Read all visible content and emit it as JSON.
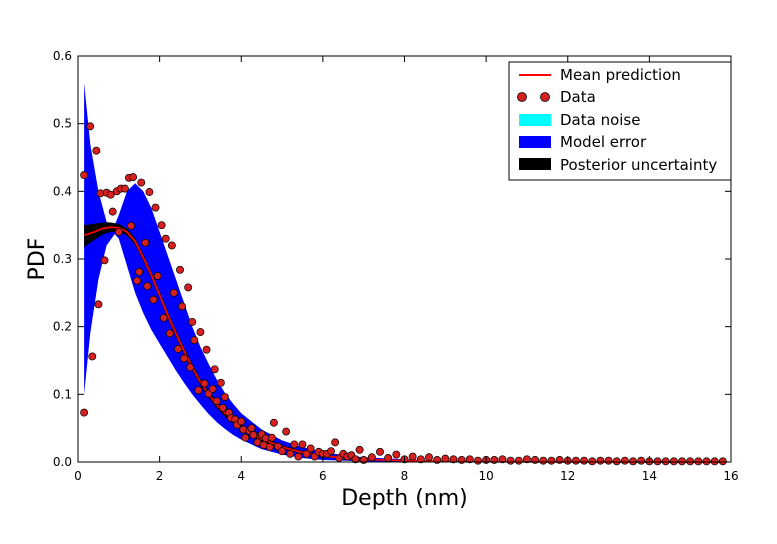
{
  "chart_data": {
    "type": "scatter",
    "xlabel": "Depth (nm)",
    "ylabel": "PDF",
    "xlim": [
      0,
      16
    ],
    "ylim": [
      0,
      0.6
    ],
    "x_ticks": [
      0,
      2,
      4,
      6,
      8,
      10,
      12,
      14,
      16
    ],
    "y_ticks": [
      0.0,
      0.1,
      0.2,
      0.3,
      0.4,
      0.5,
      0.6
    ],
    "x_tick_labels": [
      "0",
      "2",
      "4",
      "6",
      "8",
      "10",
      "12",
      "14",
      "16"
    ],
    "y_tick_labels": [
      "0.0",
      "0.1",
      "0.2",
      "0.3",
      "0.4",
      "0.5",
      "0.6"
    ],
    "grid": false,
    "legend_position": "top-right",
    "legend": [
      {
        "label": "Mean prediction",
        "kind": "line",
        "color": "#ff0000"
      },
      {
        "label": "Data",
        "kind": "markers",
        "color": "#cc1111"
      },
      {
        "label": "Data noise",
        "kind": "patch",
        "color": "#00ffff"
      },
      {
        "label": "Model error",
        "kind": "patch",
        "color": "#0000ff"
      },
      {
        "label": "Posterior uncertainty",
        "kind": "patch",
        "color": "#000000"
      }
    ],
    "colors": {
      "mean": "#ff0000",
      "data_fill": "#d62020",
      "data_edge": "#000000",
      "noise": "#00ffff",
      "model_error": "#0000ff",
      "posterior": "#000000"
    },
    "mean_prediction": {
      "x": [
        0.15,
        0.4,
        0.6,
        0.8,
        1.0,
        1.2,
        1.4,
        1.6,
        1.8,
        2.0,
        2.2,
        2.4,
        2.6,
        2.8,
        3.0,
        3.2,
        3.4,
        3.6,
        3.8,
        4.0,
        4.5,
        5.0,
        5.5,
        6.0,
        6.5,
        7.0,
        8.0,
        9.0,
        10.0,
        12.0,
        14.0,
        15.8
      ],
      "y": [
        0.335,
        0.34,
        0.345,
        0.347,
        0.346,
        0.34,
        0.326,
        0.302,
        0.276,
        0.247,
        0.217,
        0.19,
        0.164,
        0.14,
        0.118,
        0.1,
        0.085,
        0.072,
        0.061,
        0.051,
        0.034,
        0.022,
        0.014,
        0.009,
        0.006,
        0.004,
        0.002,
        0.001,
        0.0005,
        0.0002,
        0.0001,
        0.0001
      ]
    },
    "model_error_band": {
      "x": [
        0.15,
        0.3,
        0.5,
        0.7,
        0.9,
        1.0,
        1.2,
        1.4,
        1.6,
        1.8,
        2.0,
        2.2,
        2.4,
        2.6,
        2.8,
        3.0,
        3.2,
        3.4,
        3.6,
        3.8,
        4.0,
        4.5,
        5.0,
        5.5,
        6.0,
        6.5,
        7.0,
        8.0,
        9.0,
        10.0,
        12.0,
        14.0,
        15.8
      ],
      "upper": [
        0.56,
        0.47,
        0.4,
        0.355,
        0.35,
        0.365,
        0.4,
        0.412,
        0.4,
        0.375,
        0.34,
        0.305,
        0.27,
        0.235,
        0.2,
        0.17,
        0.145,
        0.122,
        0.102,
        0.086,
        0.072,
        0.048,
        0.032,
        0.022,
        0.015,
        0.01,
        0.007,
        0.004,
        0.002,
        0.001,
        0.0005,
        0.0003,
        0.0002
      ],
      "lower": [
        0.1,
        0.19,
        0.27,
        0.32,
        0.337,
        0.33,
        0.29,
        0.25,
        0.22,
        0.195,
        0.175,
        0.155,
        0.135,
        0.117,
        0.1,
        0.085,
        0.071,
        0.059,
        0.049,
        0.04,
        0.033,
        0.019,
        0.011,
        0.006,
        0.003,
        0.002,
        0.001,
        0.0005,
        0.0002,
        0.0001,
        0.0,
        0.0,
        0.0
      ]
    },
    "posterior_band": {
      "x": [
        0.15,
        0.4,
        0.6,
        0.8,
        1.0,
        1.2,
        1.4,
        1.6,
        1.8,
        2.0,
        2.2,
        2.4,
        2.6,
        2.8,
        3.0,
        3.2,
        3.4,
        3.6,
        3.8,
        4.0,
        4.5,
        5.0,
        5.5,
        6.0,
        6.5,
        7.0,
        8.0,
        9.0,
        10.0,
        12.0,
        14.0,
        15.8
      ],
      "upper": [
        0.35,
        0.352,
        0.354,
        0.354,
        0.352,
        0.345,
        0.331,
        0.307,
        0.281,
        0.252,
        0.222,
        0.195,
        0.169,
        0.145,
        0.123,
        0.105,
        0.09,
        0.077,
        0.065,
        0.055,
        0.038,
        0.025,
        0.016,
        0.011,
        0.007,
        0.005,
        0.0025,
        0.0012,
        0.0006,
        0.0003,
        0.0002,
        0.0002
      ],
      "lower": [
        0.318,
        0.328,
        0.336,
        0.34,
        0.34,
        0.335,
        0.321,
        0.297,
        0.271,
        0.242,
        0.212,
        0.185,
        0.159,
        0.135,
        0.113,
        0.095,
        0.08,
        0.067,
        0.057,
        0.047,
        0.03,
        0.019,
        0.012,
        0.007,
        0.005,
        0.003,
        0.0015,
        0.0008,
        0.0004,
        0.0001,
        0.0,
        0.0
      ]
    },
    "data_points": {
      "x": [
        0.15,
        0.15,
        0.3,
        0.35,
        0.45,
        0.5,
        0.55,
        0.65,
        0.7,
        0.8,
        0.85,
        0.95,
        1.0,
        1.05,
        1.15,
        1.25,
        1.3,
        1.35,
        1.45,
        1.5,
        1.55,
        1.65,
        1.7,
        1.75,
        1.85,
        1.9,
        1.95,
        2.05,
        2.1,
        2.15,
        2.25,
        2.3,
        2.35,
        2.45,
        2.5,
        2.55,
        2.6,
        2.7,
        2.75,
        2.8,
        2.85,
        2.95,
        3.0,
        3.1,
        3.15,
        3.2,
        3.3,
        3.35,
        3.4,
        3.5,
        3.55,
        3.6,
        3.7,
        3.75,
        3.85,
        3.9,
        4.0,
        4.05,
        4.1,
        4.2,
        4.25,
        4.3,
        4.4,
        4.5,
        4.55,
        4.6,
        4.7,
        4.75,
        4.8,
        4.9,
        5.0,
        5.1,
        5.2,
        5.3,
        5.4,
        5.5,
        5.6,
        5.7,
        5.8,
        5.9,
        6.0,
        6.1,
        6.2,
        6.3,
        6.4,
        6.5,
        6.6,
        6.7,
        6.8,
        6.9,
        7.0,
        7.2,
        7.4,
        7.6,
        7.8,
        8.0,
        8.2,
        8.4,
        8.6,
        8.8,
        9.0,
        9.2,
        9.4,
        9.6,
        9.8,
        10.0,
        10.2,
        10.4,
        10.6,
        10.8,
        11.0,
        11.2,
        11.4,
        11.6,
        11.8,
        12.0,
        12.2,
        12.4,
        12.6,
        12.8,
        13.0,
        13.2,
        13.4,
        13.6,
        13.8,
        14.0,
        14.2,
        14.4,
        14.6,
        14.8,
        15.0,
        15.2,
        15.4,
        15.6,
        15.8
      ],
      "y": [
        0.424,
        0.073,
        0.496,
        0.156,
        0.46,
        0.233,
        0.397,
        0.298,
        0.398,
        0.395,
        0.37,
        0.4,
        0.34,
        0.404,
        0.404,
        0.42,
        0.349,
        0.421,
        0.268,
        0.281,
        0.413,
        0.324,
        0.26,
        0.399,
        0.24,
        0.376,
        0.275,
        0.35,
        0.213,
        0.33,
        0.19,
        0.32,
        0.25,
        0.167,
        0.284,
        0.23,
        0.153,
        0.258,
        0.14,
        0.207,
        0.18,
        0.106,
        0.192,
        0.116,
        0.166,
        0.101,
        0.108,
        0.137,
        0.09,
        0.117,
        0.08,
        0.096,
        0.073,
        0.065,
        0.063,
        0.055,
        0.06,
        0.048,
        0.036,
        0.046,
        0.05,
        0.04,
        0.029,
        0.041,
        0.025,
        0.035,
        0.022,
        0.036,
        0.058,
        0.023,
        0.016,
        0.045,
        0.012,
        0.026,
        0.008,
        0.026,
        0.012,
        0.02,
        0.008,
        0.015,
        0.012,
        0.012,
        0.016,
        0.029,
        0.006,
        0.012,
        0.008,
        0.01,
        0.004,
        0.018,
        0.003,
        0.007,
        0.015,
        0.006,
        0.011,
        0.004,
        0.008,
        0.004,
        0.007,
        0.003,
        0.005,
        0.004,
        0.003,
        0.004,
        0.002,
        0.003,
        0.003,
        0.004,
        0.002,
        0.002,
        0.004,
        0.003,
        0.002,
        0.002,
        0.003,
        0.002,
        0.002,
        0.002,
        0.001,
        0.002,
        0.002,
        0.001,
        0.002,
        0.001,
        0.002,
        0.001,
        0.001,
        0.001,
        0.001,
        0.001,
        0.001,
        0.001,
        0.001,
        0.001,
        0.001
      ]
    }
  }
}
